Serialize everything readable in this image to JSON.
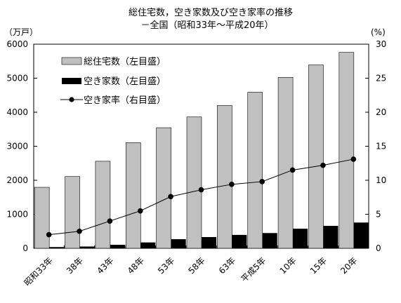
{
  "chart_data": {
    "type": "bar",
    "title": "総住宅数，空き家数及び空き家率の推移",
    "subtitle": "－全国（昭和33年～平成20年）",
    "left_unit": "（万戸）",
    "right_unit": "(%)",
    "categories": [
      "昭和33年",
      "38年",
      "43年",
      "48年",
      "53年",
      "58年",
      "63年",
      "平成5年",
      "10年",
      "15年",
      "20年"
    ],
    "left_axis": {
      "min": 0,
      "max": 6000,
      "ticks": [
        0,
        1000,
        2000,
        3000,
        4000,
        5000,
        6000
      ]
    },
    "right_axis": {
      "min": 0,
      "max": 30,
      "ticks": [
        0,
        5,
        10,
        15,
        20,
        25,
        30
      ]
    },
    "legend_position": "top-left",
    "grid": false,
    "series": [
      {
        "name": "総住宅数（左目盛）",
        "type": "bar",
        "axis": "left",
        "color": "#c0c0c0",
        "values": [
          1793,
          2109,
          2559,
          3106,
          3545,
          3861,
          4201,
          4588,
          5025,
          5389,
          5759
        ]
      },
      {
        "name": "空き家数（左目盛）",
        "type": "bar",
        "axis": "left",
        "color": "#000000",
        "values": [
          36,
          52,
          103,
          172,
          268,
          330,
          394,
          448,
          576,
          659,
          757
        ]
      },
      {
        "name": "空き家率（右目盛）",
        "type": "line",
        "axis": "right",
        "color": "#000000",
        "values": [
          2.0,
          2.5,
          4.0,
          5.5,
          7.6,
          8.6,
          9.4,
          9.8,
          11.5,
          12.2,
          13.1
        ]
      }
    ]
  }
}
